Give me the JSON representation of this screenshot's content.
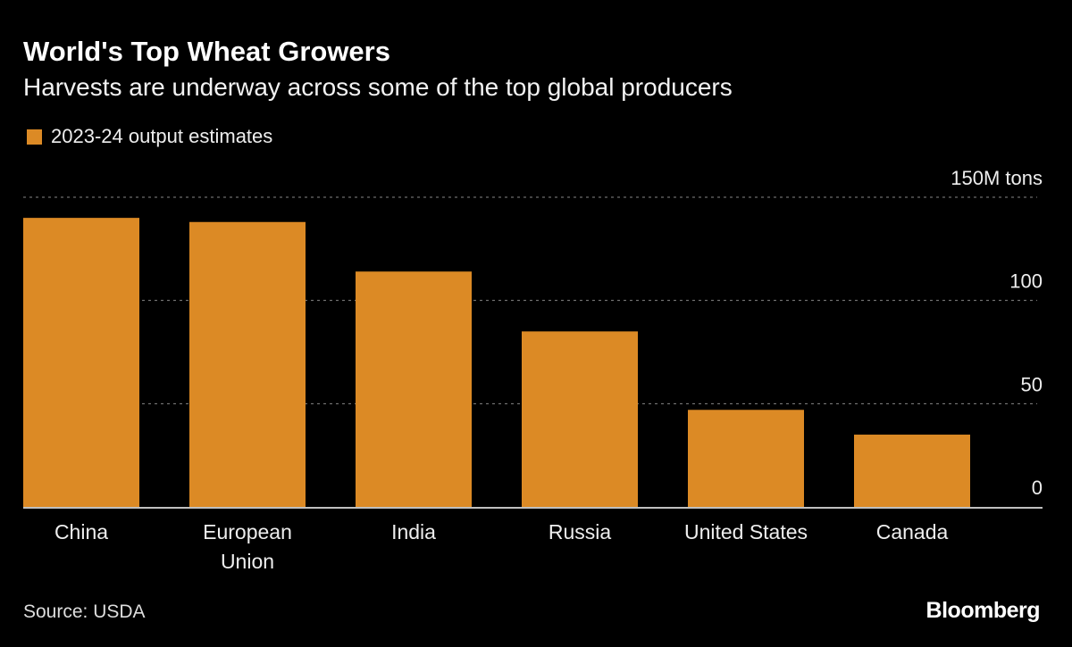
{
  "chart_data": {
    "type": "bar",
    "title": "World's Top Wheat Growers",
    "subtitle": "Harvests are underway across some of the top global producers",
    "categories": [
      "China",
      "European Union",
      "India",
      "Russia",
      "United States",
      "Canada"
    ],
    "category_lines": [
      [
        "China"
      ],
      [
        "European",
        "Union"
      ],
      [
        "India"
      ],
      [
        "Russia"
      ],
      [
        "United States"
      ],
      [
        "Canada"
      ]
    ],
    "series": [
      {
        "name": "2023-24 output estimates",
        "values": [
          140,
          138,
          114,
          85,
          47,
          35
        ],
        "color": "#dc8a25"
      }
    ],
    "ylim": [
      0,
      150
    ],
    "yticks": [
      0,
      50,
      100,
      150
    ],
    "ytick_labels": [
      "0",
      "50",
      "100",
      "150M tons"
    ],
    "grid": true,
    "legend_position": "top-left",
    "source": "Source: USDA",
    "logo": "Bloomberg"
  },
  "colors": {
    "background": "#000000",
    "bar": "#dc8a25",
    "grid": "#888888",
    "axis": "#ffffff"
  }
}
